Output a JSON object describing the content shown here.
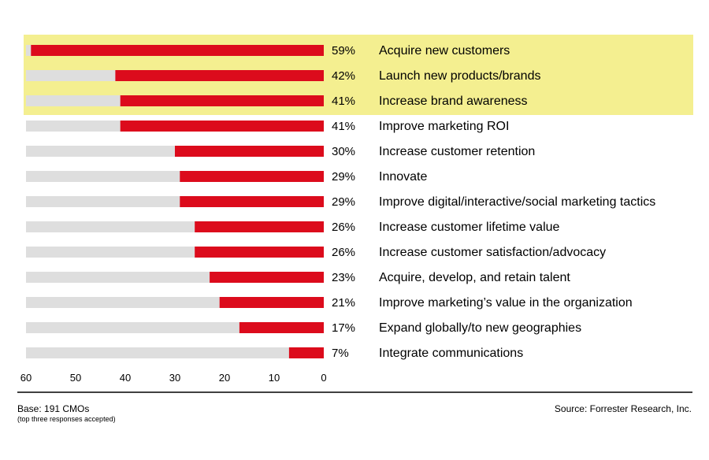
{
  "chart_data": {
    "type": "bar",
    "orientation": "horizontal",
    "direction": "right-to-left",
    "categories": [
      "Acquire new customers",
      "Launch new products/brands",
      "Increase brand awareness",
      "Improve marketing ROI",
      "Increase customer retention",
      "Innovate",
      "Improve digital/interactive/social marketing tactics",
      "Increase customer lifetime value",
      "Increase customer satisfaction/advocacy",
      "Acquire, develop, and retain talent",
      "Improve marketing’s value in the organization",
      "Expand globally/to new geographies",
      "Integrate communications"
    ],
    "values": [
      59,
      42,
      41,
      41,
      30,
      29,
      29,
      26,
      26,
      23,
      21,
      17,
      7
    ],
    "value_labels": [
      "59%",
      "42%",
      "41%",
      "41%",
      "30%",
      "29%",
      "29%",
      "26%",
      "26%",
      "23%",
      "21%",
      "17%",
      "7%"
    ],
    "xlim": [
      0,
      60
    ],
    "x_ticks": [
      "60",
      "50",
      "40",
      "30",
      "20",
      "10",
      "0"
    ],
    "highlighted_count": 3,
    "grid": false,
    "legend": "none"
  },
  "footer": {
    "base": "Base: 191 CMOs",
    "base_note": "(top three responses accepted)",
    "source": "Source: Forrester Research, Inc."
  },
  "colors": {
    "bar": "#dc0b1c",
    "track": "#dedede",
    "highlight": "#f4ef90",
    "axis": "#000000"
  }
}
